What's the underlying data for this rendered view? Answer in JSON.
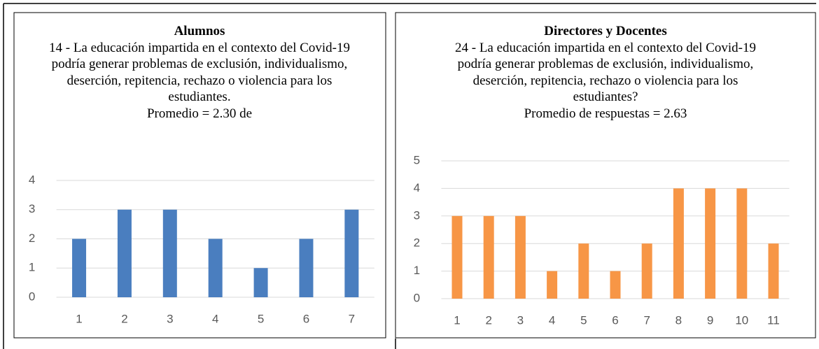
{
  "chart_data": [
    {
      "type": "bar",
      "title": "Alumnos",
      "subtitle": "14 - La educación impartida en el contexto del Covid-19 podría generar problemas de exclusión, individualismo, deserción, repitencia, rechazo o violencia para los estudiantes.",
      "annotation": "Promedio = 2.30 de",
      "categories": [
        "1",
        "2",
        "3",
        "4",
        "5",
        "6",
        "7"
      ],
      "values": [
        2,
        3,
        3,
        2,
        1,
        2,
        3
      ],
      "color": "#4a7ebf",
      "ylim": [
        0,
        4
      ],
      "yticks": [
        0,
        1,
        2,
        3,
        4
      ],
      "grid": true
    },
    {
      "type": "bar",
      "title": "Directores y Docentes",
      "subtitle": "24 - La educación impartida en el contexto del Covid-19 podría generar problemas de exclusión, individualismo, deserción, repitencia, rechazo o violencia para los estudiantes?",
      "annotation": "Promedio de respuestas = 2.63",
      "categories": [
        "1",
        "2",
        "3",
        "4",
        "5",
        "6",
        "7",
        "8",
        "9",
        "10",
        "11"
      ],
      "values": [
        3,
        3,
        3,
        1,
        2,
        1,
        2,
        4,
        4,
        4,
        2
      ],
      "color": "#f79646",
      "ylim": [
        0,
        5
      ],
      "yticks": [
        0,
        1,
        2,
        3,
        4,
        5
      ],
      "grid": true
    }
  ]
}
